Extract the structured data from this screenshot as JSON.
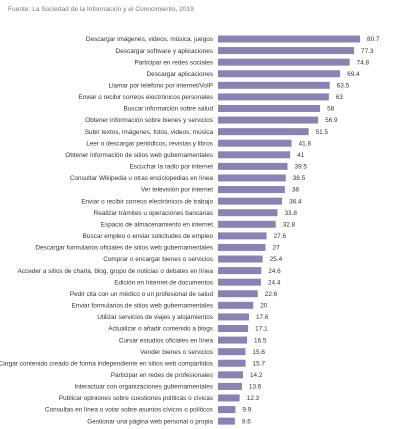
{
  "chart_data": {
    "type": "barh",
    "title": "Fuente: La Sociedad de la Información y el Conocimiento, 2019",
    "color": "#8983b3",
    "categories": [
      "Descargar imágenes, videos, música, juegos",
      "Descargar software y aplicaciones",
      "Participar en redes sociales",
      "Descargar aplicaciones",
      "Llamar por teléfono por internet/VoIP",
      "Enviar o recibir correos electrónicos personales",
      "Buscar información sobre salud",
      "Obtener información sobre bienes y servicios",
      "Subir textos, imágenes, fotos, videos, música",
      "Leer o descargar periódicos, revistas y libros",
      "Obtener información de sitios web gubernamentales",
      "Escuchar la radio por internet",
      "Consultar Wikipedia u otras enciclopedias en línea",
      "Ver televisión por internet",
      "Enviar o recibir correos electrónicos de trabajo",
      "Realizar trámites u operaciones bancarias",
      "Espacio de almacenamiento en internet",
      "Buscar empleo o enviar solicitudes de empleo",
      "Descargar formularios oficiales de sitios web gubernamentales",
      "Comprar o encargar bienes o servicios",
      "Acceder a sitios de charla, blog, grupo de noticias o debates en línea",
      "Edición en Internet de documentos",
      "Pedir cita con un médico o un profesional de salud",
      "Enviar formularios de sitios web gubernamentales",
      "Utilizar servicios de viajes y alojamientos",
      "Actualizar o añadir contenido a blogs",
      "Cursar estudios oficiales en línea",
      "Vender bienes o servicios",
      "Cargar contenido creado de forma independiente en sitios web compartidos",
      "Participar en redes de profesionales",
      "Interactuar con organizaciones gubernamentales",
      "Publicar opiniones sobre cuestiones políticas o cívicas",
      "Consultas en línea o votar sobre asuntos cívicos o políticos",
      "Gestionar una página web personal o propia"
    ],
    "values": [
      80.7,
      77.3,
      74.8,
      69.4,
      63.5,
      63,
      58,
      56.9,
      51.5,
      41.8,
      41,
      39.5,
      38.5,
      38,
      36.4,
      33.8,
      32.8,
      27.6,
      27,
      25.4,
      24.6,
      24.4,
      22.6,
      20,
      17.6,
      17.1,
      16.5,
      15.6,
      15.7,
      14.2,
      13.6,
      12.3,
      9.9,
      9.6
    ]
  }
}
